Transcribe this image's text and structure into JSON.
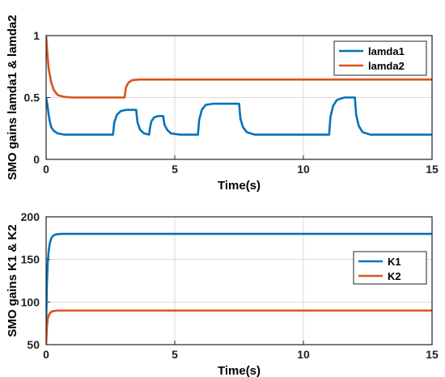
{
  "chart_data": [
    {
      "type": "line",
      "title": "",
      "xlabel": "Time(s)",
      "ylabel": "SMO gains lamda1 & lamda2",
      "xlim": [
        0,
        15
      ],
      "ylim": [
        0,
        1
      ],
      "x_ticks": [
        "0",
        "5",
        "10",
        "15"
      ],
      "y_ticks": [
        "0",
        "0.5",
        "1"
      ],
      "grid": true,
      "legend_position": "top-right",
      "series": [
        {
          "name": "lamda1",
          "color": "#0072BD",
          "x": [
            0,
            0.05,
            0.1,
            0.15,
            0.2,
            0.3,
            0.45,
            0.7,
            2.6,
            2.65,
            2.75,
            2.9,
            3.1,
            3.5,
            3.55,
            3.65,
            3.8,
            4.0,
            4.05,
            4.1,
            4.2,
            4.35,
            4.55,
            4.6,
            4.7,
            4.85,
            5.2,
            5.9,
            5.95,
            6.05,
            6.2,
            6.5,
            7.5,
            7.55,
            7.65,
            7.8,
            8.1,
            11.0,
            11.05,
            11.15,
            11.3,
            11.6,
            12.0,
            12.05,
            12.15,
            12.3,
            12.6,
            15
          ],
          "y": [
            0.5,
            0.44,
            0.36,
            0.3,
            0.26,
            0.23,
            0.21,
            0.2,
            0.2,
            0.3,
            0.36,
            0.39,
            0.4,
            0.4,
            0.3,
            0.24,
            0.21,
            0.2,
            0.27,
            0.31,
            0.34,
            0.35,
            0.35,
            0.28,
            0.24,
            0.21,
            0.2,
            0.2,
            0.32,
            0.4,
            0.44,
            0.45,
            0.45,
            0.33,
            0.26,
            0.22,
            0.2,
            0.2,
            0.34,
            0.43,
            0.48,
            0.5,
            0.5,
            0.36,
            0.27,
            0.22,
            0.2,
            0.2
          ]
        },
        {
          "name": "lamda2",
          "color": "#D95319",
          "x": [
            0,
            0.05,
            0.1,
            0.2,
            0.3,
            0.45,
            0.7,
            1.0,
            3.05,
            3.1,
            3.2,
            3.35,
            3.6,
            15
          ],
          "y": [
            1.0,
            0.85,
            0.73,
            0.62,
            0.56,
            0.52,
            0.505,
            0.5,
            0.5,
            0.58,
            0.62,
            0.64,
            0.645,
            0.645
          ]
        }
      ]
    },
    {
      "type": "line",
      "title": "",
      "xlabel": "Time(s)",
      "ylabel": "SMO gains K1 & K2",
      "xlim": [
        0,
        15
      ],
      "ylim": [
        50,
        200
      ],
      "x_ticks": [
        "0",
        "5",
        "10",
        "15"
      ],
      "y_ticks": [
        "50",
        "100",
        "150",
        "200"
      ],
      "grid": true,
      "legend_position": "right",
      "series": [
        {
          "name": "K1",
          "color": "#0072BD",
          "x": [
            0,
            0.03,
            0.06,
            0.1,
            0.15,
            0.2,
            0.3,
            0.4,
            0.6,
            15
          ],
          "y": [
            70,
            120,
            145,
            160,
            170,
            175,
            178.5,
            179.5,
            180,
            180
          ]
        },
        {
          "name": "K2",
          "color": "#D95319",
          "x": [
            0,
            0.03,
            0.06,
            0.1,
            0.15,
            0.2,
            0.3,
            0.45,
            15
          ],
          "y": [
            50,
            70,
            80,
            84,
            87,
            88.5,
            89.5,
            90,
            90
          ]
        }
      ]
    }
  ]
}
